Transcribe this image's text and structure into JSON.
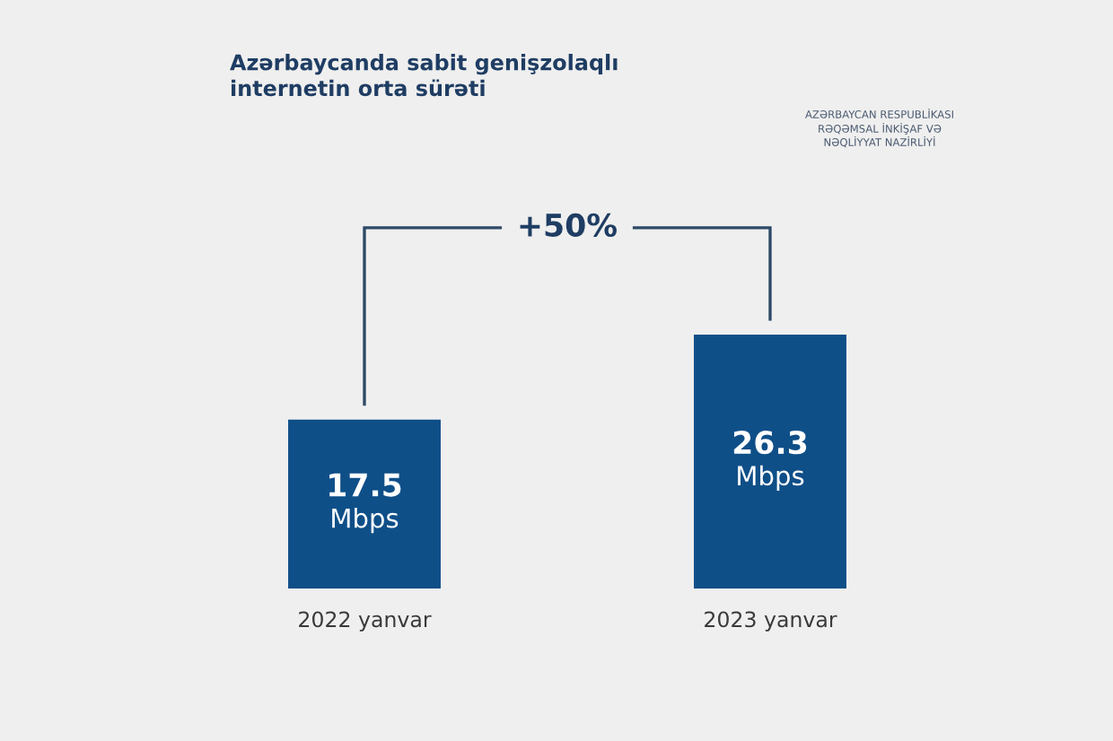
{
  "chart_data": {
    "type": "bar",
    "title": "Azərbaycanda sabit genişzolaqlı\ninternetin orta sürəti",
    "categories": [
      "2022 yanvar",
      "2023 yanvar"
    ],
    "values": [
      17.5,
      26.3
    ],
    "color": "#0f4f88",
    "value_labels": [
      "17.5\nMbps",
      "26.3\nMbps"
    ],
    "annotations": [
      "+50%",
      "AZƏRBAYCAN RESPUBLİKASI\nRƏQƏMSAL İNKİŞAF VƏ\nNƏQLİYYAT NAZİRLİYİ"
    ]
  }
}
